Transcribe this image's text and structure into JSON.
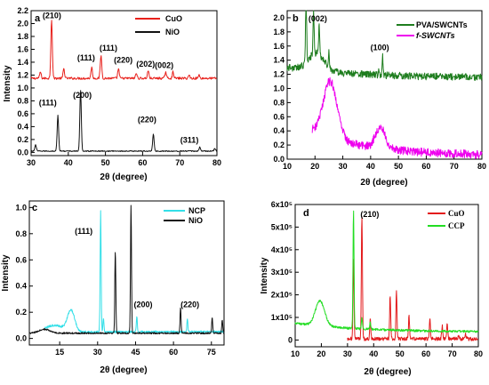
{
  "chart_data": [
    {
      "panel": "a",
      "type": "line",
      "xlabel": "2θ (degree)",
      "ylabel": "Intensity",
      "xlim": [
        30,
        80
      ],
      "ylim": [
        -0.05,
        2.2
      ],
      "xticks": [
        "30",
        "40",
        "50",
        "60",
        "70",
        "80"
      ],
      "yticks": [
        "0.0",
        "0.2",
        "0.4",
        "0.6",
        "0.8",
        "1.0",
        "1.2",
        "1.4",
        "1.6",
        "1.8",
        "2.0",
        "2.2"
      ],
      "ytick_values": [
        0,
        0.2,
        0.4,
        0.6,
        0.8,
        1.0,
        1.2,
        1.4,
        1.6,
        1.8,
        2.0,
        2.2
      ],
      "legend": "top-right",
      "series": [
        {
          "name": "CuO",
          "color": "#e8201b",
          "baseline": 1.15,
          "peaks": [
            [
              32.5,
              0.1
            ],
            [
              35.5,
              0.92
            ],
            [
              38.8,
              0.15
            ],
            [
              46.3,
              0.17
            ],
            [
              48.8,
              0.35
            ],
            [
              53.5,
              0.15
            ],
            [
              58.3,
              0.08
            ],
            [
              61.5,
              0.12
            ],
            [
              66.2,
              0.1
            ],
            [
              68.2,
              0.1
            ],
            [
              72.5,
              0.05
            ],
            [
              75.2,
              0.05
            ]
          ],
          "noise": 0.018
        },
        {
          "name": "NiO",
          "color": "#111111",
          "baseline": 0.02,
          "peaks": [
            [
              31.2,
              0.1
            ],
            [
              37.2,
              0.55
            ],
            [
              43.3,
              0.95
            ],
            [
              62.9,
              0.26
            ],
            [
              75.4,
              0.06
            ],
            [
              79.4,
              0.04
            ]
          ],
          "noise": 0.008
        }
      ],
      "annotations": [
        {
          "text": "(210)",
          "x": 35.6,
          "y": 2.08
        },
        {
          "text": "(111)",
          "x": 44.8,
          "y": 1.43
        },
        {
          "text": "(111)",
          "x": 50.8,
          "y": 1.58
        },
        {
          "text": "(220)",
          "x": 54.8,
          "y": 1.39
        },
        {
          "text": "(202)",
          "x": 60.8,
          "y": 1.33
        },
        {
          "text": "(002)",
          "x": 65.8,
          "y": 1.31
        },
        {
          "text": "(111)",
          "x": 34.5,
          "y": 0.73
        },
        {
          "text": "(200)",
          "x": 43.8,
          "y": 0.85
        },
        {
          "text": "(220)",
          "x": 61.2,
          "y": 0.47
        },
        {
          "text": "(311)",
          "x": 72.6,
          "y": 0.15
        }
      ]
    },
    {
      "panel": "b",
      "type": "line",
      "xlabel": "2θ (degree)",
      "ylabel": "",
      "xlim": [
        10,
        80
      ],
      "ylim": [
        0,
        2.1
      ],
      "xticks": [
        "10",
        "20",
        "30",
        "40",
        "50",
        "60",
        "70",
        "80"
      ],
      "yticks": [
        "0.0",
        "0.2",
        "0.4",
        "0.6",
        "0.8",
        "1.0",
        "1.2",
        "1.4",
        "1.6",
        "1.8",
        "2.0"
      ],
      "ytick_values": [
        0,
        0.2,
        0.4,
        0.6,
        0.8,
        1.0,
        1.2,
        1.4,
        1.6,
        1.8,
        2.0
      ],
      "legend": "top-right",
      "series": [
        {
          "name": "PVA/SWCNTs",
          "color": "#1e7d1e",
          "baseline": 1.15,
          "x_start": 10,
          "peaks": [
            [
              16.8,
              0.9
            ],
            [
              19.5,
              0.6
            ],
            [
              21.5,
              0.4
            ],
            [
              25.0,
              0.2
            ],
            [
              43.0,
              0.05
            ],
            [
              44.3,
              0.28
            ]
          ],
          "bumps": [
            [
              20.5,
              0.25,
              4
            ]
          ],
          "decay": [
            0.15,
            25
          ],
          "noise": 0.05
        },
        {
          "name": "f-SWCNTs",
          "color": "#ee00ee",
          "baseline": 0.05,
          "x_start": 19,
          "peaks": [],
          "bumps": [
            [
              25.5,
              0.8,
              3.5
            ],
            [
              43.5,
              0.3,
              2.5
            ]
          ],
          "decay": [
            0.35,
            20
          ],
          "noise": 0.06
        }
      ],
      "annotations": [
        {
          "text": "(002)",
          "x": 21.0,
          "y": 1.95
        },
        {
          "text": "(100)",
          "x": 43.3,
          "y": 1.54
        }
      ]
    },
    {
      "panel": "c",
      "type": "line",
      "xlabel": "2θ (degree)",
      "ylabel": "Intensity",
      "xlim": [
        3,
        80
      ],
      "ylim": [
        -0.05,
        1.05
      ],
      "xticks": [
        "15",
        "30",
        "45",
        "60",
        "75"
      ],
      "xtick_values": [
        15,
        30,
        45,
        60,
        75
      ],
      "yticks": [
        "0.0",
        "0.2",
        "0.4",
        "0.6",
        "0.8",
        "1.0"
      ],
      "ytick_values": [
        0,
        0.2,
        0.4,
        0.6,
        0.8,
        1.0
      ],
      "legend": "top-right",
      "series": [
        {
          "name": "NCP",
          "color": "#33dfe8",
          "baseline": 0.05,
          "x_start": 9,
          "peaks": [
            [
              31.2,
              0.93
            ],
            [
              32.3,
              0.1
            ],
            [
              45.5,
              0.12
            ],
            [
              65.5,
              0.1
            ]
          ],
          "bumps": [
            [
              19.5,
              0.16,
              2
            ],
            [
              13,
              0.05,
              5
            ]
          ],
          "decay": [
            0.0,
            20
          ],
          "noise": 0.008
        },
        {
          "name": "NiO",
          "color": "#111111",
          "baseline": 0.04,
          "x_start": 3,
          "peaks": [
            [
              37.0,
              0.63
            ],
            [
              43.2,
              0.97
            ],
            [
              62.8,
              0.2
            ],
            [
              75.3,
              0.12
            ],
            [
              79.3,
              0.1
            ]
          ],
          "bumps": [
            [
              9,
              0.03,
              3
            ]
          ],
          "decay": [
            0.0,
            20
          ],
          "noise": 0.006
        }
      ],
      "annotations": [
        {
          "text": "(111)",
          "x": 24.5,
          "y": 0.8
        },
        {
          "text": "(200)",
          "x": 48.0,
          "y": 0.24
        },
        {
          "text": "(220)",
          "x": 66.5,
          "y": 0.24
        }
      ]
    },
    {
      "panel": "d",
      "type": "line",
      "xlabel": "2θ (degree)",
      "ylabel": "Intensity",
      "xlim": [
        10,
        80
      ],
      "ylim": [
        -0.3,
        6.0
      ],
      "xticks": [
        "10",
        "20",
        "30",
        "40",
        "50",
        "60",
        "70",
        "80"
      ],
      "yticks": [
        "0",
        "1x10⁵",
        "2x10⁵",
        "3x10⁵",
        "4x10⁵",
        "5x10⁵",
        "6x10⁵"
      ],
      "ytick_values": [
        0,
        1,
        2,
        3,
        4,
        5,
        6
      ],
      "legend": "top-right",
      "series": [
        {
          "name": "CuO",
          "color": "#e31a1c",
          "baseline": 0.05,
          "x_start": 30,
          "peaks": [
            [
              32.3,
              3.5
            ],
            [
              35.5,
              5.5
            ],
            [
              38.7,
              0.9
            ],
            [
              46.3,
              1.95
            ],
            [
              48.7,
              2.1
            ],
            [
              53.5,
              1.05
            ],
            [
              61.5,
              0.85
            ],
            [
              66.2,
              0.6
            ],
            [
              68.1,
              0.7
            ],
            [
              72.4,
              0.15
            ],
            [
              75.2,
              0.2
            ]
          ],
          "bumps": [],
          "decay": [
            0.0,
            20
          ],
          "noise": 0.08
        },
        {
          "name": "CCP",
          "color": "#22dd22",
          "baseline": 0.35,
          "x_start": 10,
          "peaks": [
            [
              32.3,
              5.2
            ],
            [
              35.5,
              0.5
            ],
            [
              38.7,
              0.3
            ]
          ],
          "bumps": [
            [
              19.5,
              1.1,
              2.5
            ]
          ],
          "decay": [
            0.4,
            25
          ],
          "noise": 0.05
        }
      ],
      "annotations": [
        {
          "text": "(210)",
          "x": 38.5,
          "y": 5.45
        }
      ]
    }
  ],
  "panels": {
    "a": {
      "label": "a",
      "xlabel": "2θ (degree)",
      "ylabel": "Intensity",
      "legend": [
        "CuO",
        "NiO"
      ]
    },
    "b": {
      "label": "b",
      "xlabel": "2θ (degree)",
      "legend": [
        "PVA/SWCNTs",
        "f-SWCNTs"
      ]
    },
    "c": {
      "label": "c",
      "xlabel": "2θ (degree)",
      "ylabel": "Intensity",
      "legend": [
        "NCP",
        "NiO"
      ]
    },
    "d": {
      "label": "d",
      "xlabel": "2θ (degree)",
      "ylabel": "Intensity",
      "legend": [
        "CuO",
        "CCP"
      ]
    }
  }
}
